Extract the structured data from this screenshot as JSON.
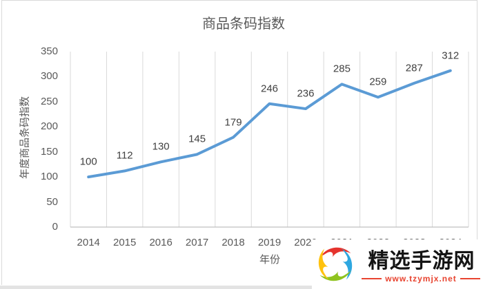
{
  "chart_data": {
    "type": "line",
    "title": "商品条码指数",
    "xlabel": "年份",
    "ylabel": "年度商品条码指数",
    "categories": [
      "2014",
      "2015",
      "2016",
      "2017",
      "2018",
      "2019",
      "2020",
      "2021",
      "2022",
      "2023",
      "2024"
    ],
    "series": [
      {
        "name": "年度商品条码指数",
        "values": [
          100,
          112,
          130,
          145,
          179,
          246,
          236,
          285,
          259,
          287,
          312
        ]
      }
    ],
    "data_labels": [
      100,
      112,
      130,
      145,
      179,
      246,
      236,
      285,
      259,
      287,
      312
    ],
    "y_ticks": [
      0,
      50,
      100,
      150,
      200,
      250,
      300,
      350
    ],
    "ylim": [
      0,
      350
    ],
    "grid": "vertical-only",
    "legend": "none"
  },
  "colors": {
    "line": "#5b9bd5",
    "gridline": "#d9d9d9",
    "axis_line": "#bfbfbf",
    "tick_text": "#595959",
    "data_label_text": "#404040",
    "title_text": "#595959",
    "frame_border": "#d9d9d9",
    "watermark_red": "#e8432f",
    "logo_red": "#e5332d",
    "logo_blue": "#2ea7e0",
    "logo_green": "#8fc31f",
    "logo_yellow": "#ffc20e"
  },
  "watermark": {
    "site_name": "精选手游网",
    "url": "www.tzymjx.net"
  }
}
